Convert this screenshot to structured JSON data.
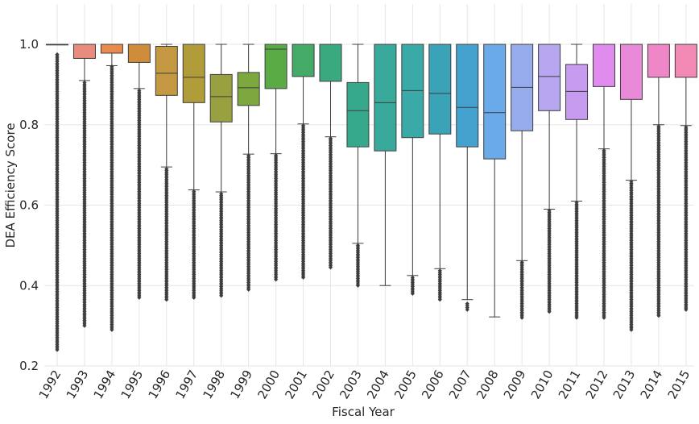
{
  "chart_data": {
    "type": "box",
    "title": "",
    "xlabel": "Fiscal Year",
    "ylabel": "DEA Efficiency Score",
    "ylim": [
      0.2,
      1.05
    ],
    "yticks": [
      "0.2",
      "0.4",
      "0.6",
      "0.8",
      "1.0"
    ],
    "ytick_values": [
      0.2,
      0.4,
      0.6,
      0.8,
      1.0
    ],
    "grid": true,
    "categories": [
      "1992",
      "1993",
      "1994",
      "1995",
      "1996",
      "1997",
      "1998",
      "1999",
      "2000",
      "2001",
      "2002",
      "2003",
      "2004",
      "2005",
      "2006",
      "2007",
      "2008",
      "2009",
      "2010",
      "2011",
      "2012",
      "2013",
      "2014",
      "2015"
    ],
    "boxes": [
      {
        "year": "1992",
        "q1": 1.0,
        "median": 1.0,
        "q3": 1.0,
        "whisker_low": 1.0,
        "whisker_high": 1.0,
        "outlier_min": 0.24,
        "outlier_max": 0.975,
        "color": "#f77189"
      },
      {
        "year": "1993",
        "q1": 0.965,
        "median": 1.0,
        "q3": 1.0,
        "whisker_low": 0.91,
        "whisker_high": 1.0,
        "outlier_min": 0.3,
        "outlier_max": 0.905,
        "color": "#e98c7e"
      },
      {
        "year": "1994",
        "q1": 0.978,
        "median": 1.0,
        "q3": 1.0,
        "whisker_low": 0.947,
        "whisker_high": 1.0,
        "outlier_min": 0.29,
        "outlier_max": 0.945,
        "color": "#e68a4e"
      },
      {
        "year": "1995",
        "q1": 0.955,
        "median": 1.0,
        "q3": 1.0,
        "whisker_low": 0.89,
        "whisker_high": 1.0,
        "outlier_min": 0.37,
        "outlier_max": 0.885,
        "color": "#cf8c3b"
      },
      {
        "year": "1996",
        "q1": 0.873,
        "median": 0.928,
        "q3": 0.995,
        "whisker_low": 0.695,
        "whisker_high": 1.0,
        "outlier_min": 0.365,
        "outlier_max": 0.69,
        "color": "#c49942"
      },
      {
        "year": "1997",
        "q1": 0.855,
        "median": 0.918,
        "q3": 1.0,
        "whisker_low": 0.638,
        "whisker_high": 1.0,
        "outlier_min": 0.37,
        "outlier_max": 0.634,
        "color": "#b09c39"
      },
      {
        "year": "1998",
        "q1": 0.807,
        "median": 0.87,
        "q3": 0.925,
        "whisker_low": 0.633,
        "whisker_high": 1.0,
        "outlier_min": 0.375,
        "outlier_max": 0.628,
        "color": "#98a040"
      },
      {
        "year": "1999",
        "q1": 0.848,
        "median": 0.892,
        "q3": 0.93,
        "whisker_low": 0.727,
        "whisker_high": 1.0,
        "outlier_min": 0.39,
        "outlier_max": 0.723,
        "color": "#7da73f"
      },
      {
        "year": "2000",
        "q1": 0.89,
        "median": 0.988,
        "q3": 1.0,
        "whisker_low": 0.728,
        "whisker_high": 1.0,
        "outlier_min": 0.415,
        "outlier_max": 0.724,
        "color": "#5aaa46"
      },
      {
        "year": "2001",
        "q1": 0.92,
        "median": 1.0,
        "q3": 1.0,
        "whisker_low": 0.802,
        "whisker_high": 1.0,
        "outlier_min": 0.42,
        "outlier_max": 0.798,
        "color": "#44aa68"
      },
      {
        "year": "2002",
        "q1": 0.908,
        "median": 1.0,
        "q3": 1.0,
        "whisker_low": 0.77,
        "whisker_high": 1.0,
        "outlier_min": 0.445,
        "outlier_max": 0.766,
        "color": "#3ba97f"
      },
      {
        "year": "2003",
        "q1": 0.745,
        "median": 0.835,
        "q3": 0.905,
        "whisker_low": 0.505,
        "whisker_high": 1.0,
        "outlier_min": 0.4,
        "outlier_max": 0.5,
        "color": "#36a98d"
      },
      {
        "year": "2004",
        "q1": 0.735,
        "median": 0.855,
        "q3": 1.0,
        "whisker_low": 0.4,
        "whisker_high": 1.0,
        "outlier_min": null,
        "outlier_max": null,
        "color": "#38a99b"
      },
      {
        "year": "2005",
        "q1": 0.768,
        "median": 0.885,
        "q3": 1.0,
        "whisker_low": 0.425,
        "whisker_high": 1.0,
        "outlier_min": 0.38,
        "outlier_max": 0.42,
        "color": "#3aaaa8"
      },
      {
        "year": "2006",
        "q1": 0.777,
        "median": 0.878,
        "q3": 1.0,
        "whisker_low": 0.442,
        "whisker_high": 1.0,
        "outlier_min": 0.365,
        "outlier_max": 0.437,
        "color": "#3ba3b7"
      },
      {
        "year": "2007",
        "q1": 0.745,
        "median": 0.843,
        "q3": 1.0,
        "whisker_low": 0.365,
        "whisker_high": 1.0,
        "outlier_min": 0.34,
        "outlier_max": 0.355,
        "color": "#45a2cf"
      },
      {
        "year": "2008",
        "q1": 0.715,
        "median": 0.83,
        "q3": 1.0,
        "whisker_low": 0.322,
        "whisker_high": 1.0,
        "outlier_min": null,
        "outlier_max": null,
        "color": "#6aaae8"
      },
      {
        "year": "2009",
        "q1": 0.785,
        "median": 0.893,
        "q3": 1.0,
        "whisker_low": 0.462,
        "whisker_high": 1.0,
        "outlier_min": 0.32,
        "outlier_max": 0.458,
        "color": "#97aced"
      },
      {
        "year": "2010",
        "q1": 0.835,
        "median": 0.92,
        "q3": 1.0,
        "whisker_low": 0.59,
        "whisker_high": 1.0,
        "outlier_min": 0.335,
        "outlier_max": 0.586,
        "color": "#b7a6f0"
      },
      {
        "year": "2011",
        "q1": 0.813,
        "median": 0.883,
        "q3": 0.95,
        "whisker_low": 0.61,
        "whisker_high": 1.0,
        "outlier_min": 0.32,
        "outlier_max": 0.606,
        "color": "#c79cf0"
      },
      {
        "year": "2012",
        "q1": 0.895,
        "median": 1.0,
        "q3": 1.0,
        "whisker_low": 0.74,
        "whisker_high": 1.0,
        "outlier_min": 0.32,
        "outlier_max": 0.736,
        "color": "#e08cef"
      },
      {
        "year": "2013",
        "q1": 0.863,
        "median": 1.0,
        "q3": 1.0,
        "whisker_low": 0.662,
        "whisker_high": 1.0,
        "outlier_min": 0.29,
        "outlier_max": 0.658,
        "color": "#e98ad9"
      },
      {
        "year": "2014",
        "q1": 0.918,
        "median": 1.0,
        "q3": 1.0,
        "whisker_low": 0.8,
        "whisker_high": 1.0,
        "outlier_min": 0.325,
        "outlier_max": 0.796,
        "color": "#ef86c7"
      },
      {
        "year": "2015",
        "q1": 0.918,
        "median": 1.0,
        "q3": 1.0,
        "whisker_low": 0.798,
        "whisker_high": 1.0,
        "outlier_min": 0.34,
        "outlier_max": 0.794,
        "color": "#f389b5"
      }
    ]
  }
}
